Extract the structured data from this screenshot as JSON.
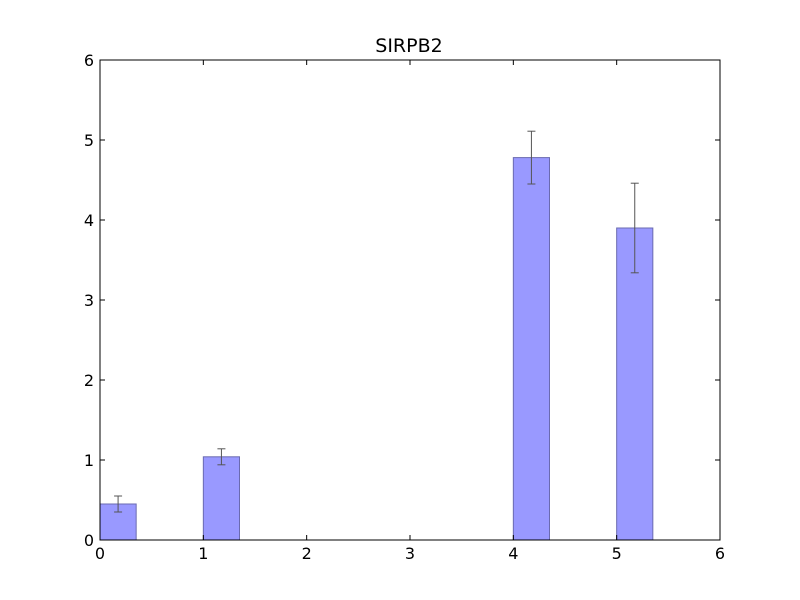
{
  "chart_data": {
    "type": "bar",
    "title": "SIRPB2",
    "xlabel": "",
    "ylabel": "",
    "xlim": [
      0,
      6
    ],
    "ylim": [
      0,
      6
    ],
    "x_ticks": [
      "0",
      "1",
      "2",
      "3",
      "4",
      "5",
      "6"
    ],
    "y_ticks": [
      "0",
      "1",
      "2",
      "3",
      "4",
      "5",
      "6"
    ],
    "bar_width": 0.35,
    "bars": [
      {
        "x": 0,
        "value": 0.45,
        "error": 0.1
      },
      {
        "x": 1,
        "value": 1.04,
        "error": 0.1
      },
      {
        "x": 2,
        "value": 0.0,
        "error": 0.0
      },
      {
        "x": 3,
        "value": 0.0,
        "error": 0.0
      },
      {
        "x": 4,
        "value": 4.78,
        "error": 0.33
      },
      {
        "x": 5,
        "value": 3.9,
        "error": 0.56
      }
    ],
    "grid": false,
    "bar_color": "#9999ff",
    "bar_edge_color": "#6a6ab0",
    "error_color": "#555555"
  }
}
